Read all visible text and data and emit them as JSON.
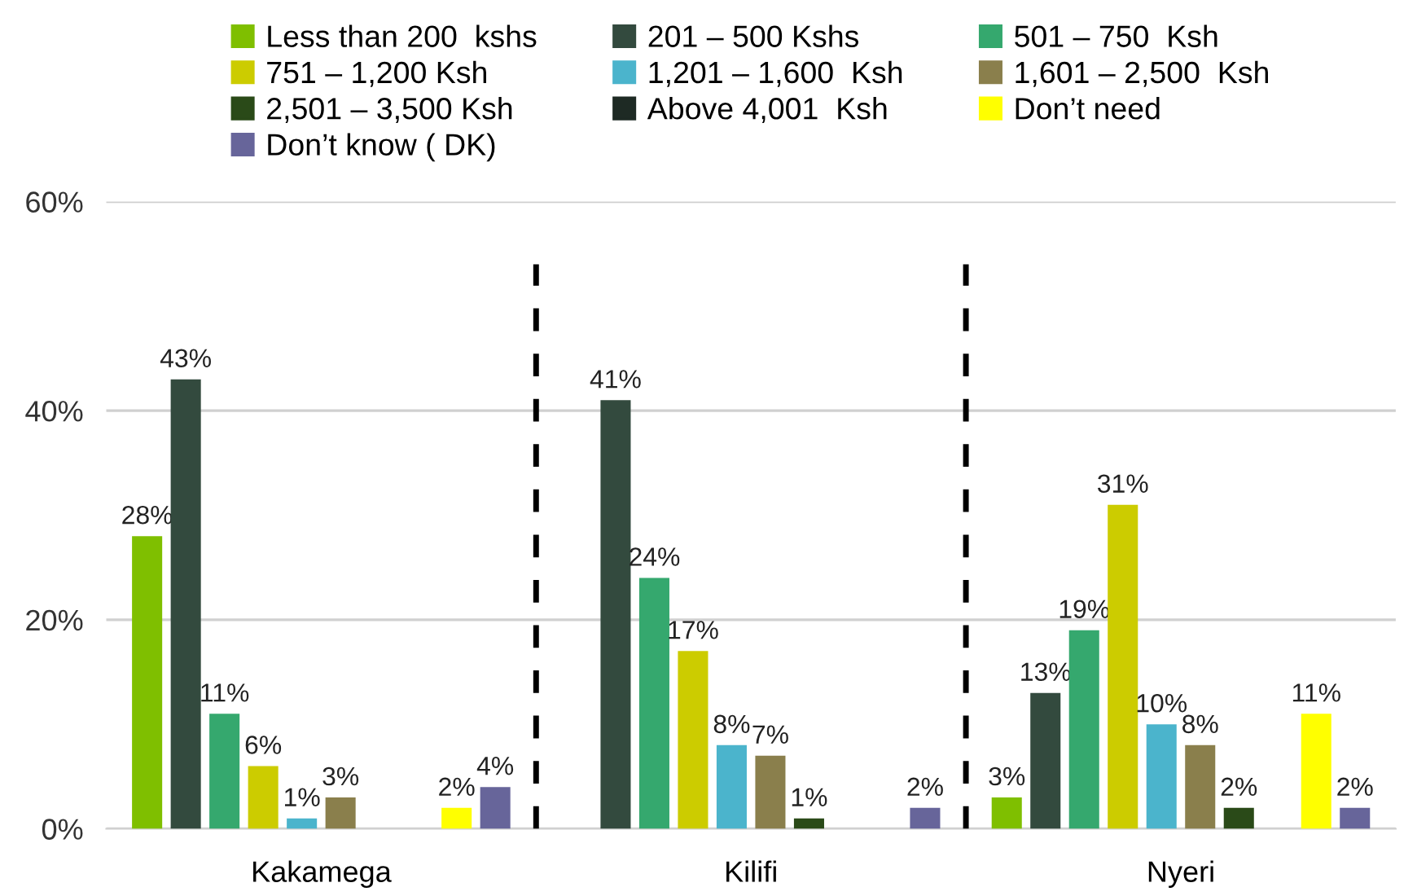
{
  "chart_data": {
    "type": "bar",
    "categories": [
      "Kakamega",
      "Kilifi",
      "Nyeri"
    ],
    "series": [
      {
        "name": "Less than 200  kshs",
        "color": "#7fbf00",
        "values": [
          28,
          null,
          3
        ],
        "value_labels": [
          "28%",
          null,
          "3%"
        ]
      },
      {
        "name": "201 – 500 Kshs",
        "color": "#334a3e",
        "values": [
          43,
          41,
          13
        ],
        "value_labels": [
          "43%",
          "41%",
          "13%"
        ]
      },
      {
        "name": "501 – 750  Ksh",
        "color": "#35a86e",
        "values": [
          11,
          24,
          19
        ],
        "value_labels": [
          "11%",
          "24%",
          "19%"
        ]
      },
      {
        "name": "751 – 1,200 Ksh",
        "color": "#cccc00",
        "values": [
          6,
          17,
          31
        ],
        "value_labels": [
          "6%",
          "17%",
          "31%"
        ]
      },
      {
        "name": "1,201 – 1,600  Ksh",
        "color": "#4bb4cc",
        "values": [
          1,
          8,
          10
        ],
        "value_labels": [
          "1%",
          "8%",
          "10%"
        ]
      },
      {
        "name": "1,601 – 2,500  Ksh",
        "color": "#8a7f4c",
        "values": [
          3,
          7,
          8
        ],
        "value_labels": [
          "3%",
          "7%",
          "8%"
        ]
      },
      {
        "name": "2,501 – 3,500 Ksh",
        "color": "#2a4a18",
        "values": [
          null,
          1,
          2
        ],
        "value_labels": [
          null,
          "1%",
          "2%"
        ]
      },
      {
        "name": "Above 4,001  Ksh",
        "color": "#1e2a24",
        "values": [
          null,
          null,
          null
        ],
        "value_labels": [
          null,
          null,
          null
        ]
      },
      {
        "name": "Don’t need",
        "color": "#ffff00",
        "values": [
          2,
          null,
          11
        ],
        "value_labels": [
          "2%",
          null,
          "11%"
        ]
      },
      {
        "name": "Don’t know ( DK)",
        "color": "#67659a",
        "values": [
          4,
          2,
          2
        ],
        "value_labels": [
          "4%",
          "2%",
          "2%"
        ]
      }
    ],
    "ylim": [
      0,
      60
    ],
    "yticks": [
      {
        "value": 0,
        "label": "0%"
      },
      {
        "value": 20,
        "label": "20%"
      },
      {
        "value": 40,
        "label": "40%"
      },
      {
        "value": 60,
        "label": "60%"
      }
    ],
    "grid": "y",
    "legend": "top"
  }
}
